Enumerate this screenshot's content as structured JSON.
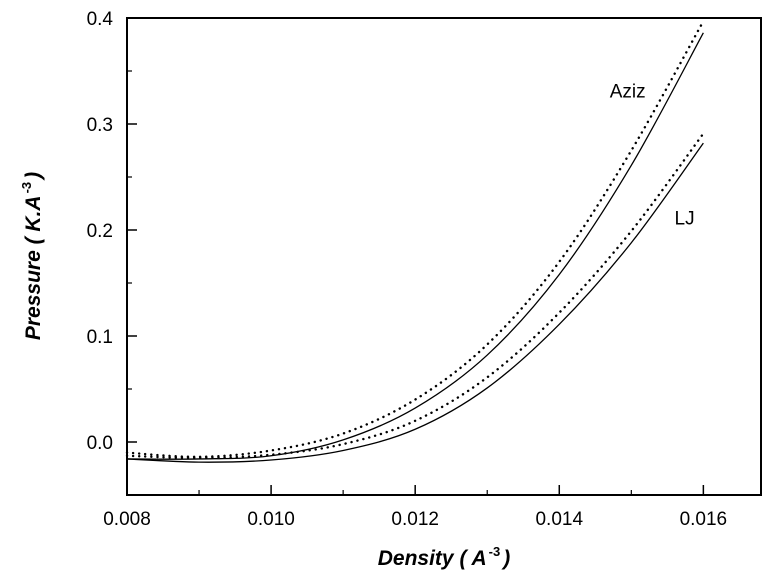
{
  "chart_data": {
    "type": "line",
    "xlabel": "Density ( A",
    "xlabel_exponent": "-3",
    "xlabel_close": ")",
    "ylabel": "Pressure ( K.A",
    "ylabel_exponent": "-3",
    "ylabel_close": ")",
    "xlim": [
      0.008,
      0.0168
    ],
    "ylim": [
      -0.05,
      0.4
    ],
    "x_ticks": [
      0.008,
      0.01,
      0.012,
      0.014,
      0.016
    ],
    "x_tick_labels": [
      "0.008",
      "0.010",
      "0.012",
      "0.014",
      "0.016"
    ],
    "y_ticks": [
      0.0,
      0.1,
      0.2,
      0.3,
      0.4
    ],
    "y_tick_labels": [
      "0.0",
      "0.1",
      "0.2",
      "0.3",
      "0.4"
    ],
    "grid": false,
    "annotations": [
      {
        "text": "Aziz",
        "x": 0.0147,
        "y": 0.325
      },
      {
        "text": "LJ",
        "x": 0.0156,
        "y": 0.205
      }
    ],
    "series": [
      {
        "style": "solid",
        "x": [
          0.008,
          0.009,
          0.01,
          0.011,
          0.012,
          0.013,
          0.014,
          0.015,
          0.016
        ],
        "y": [
          -0.016,
          -0.016,
          -0.013,
          0.002,
          0.032,
          0.082,
          0.158,
          0.261,
          0.386
        ]
      },
      {
        "style": "dotted",
        "x": [
          0.008,
          0.009,
          0.01,
          0.011,
          0.012,
          0.013,
          0.014,
          0.015,
          0.016
        ],
        "y": [
          -0.01,
          -0.014,
          -0.008,
          0.008,
          0.04,
          0.092,
          0.17,
          0.275,
          0.397
        ]
      },
      {
        "style": "solid",
        "x": [
          0.008,
          0.009,
          0.01,
          0.011,
          0.012,
          0.013,
          0.014,
          0.015,
          0.016
        ],
        "y": [
          -0.016,
          -0.019,
          -0.017,
          -0.008,
          0.012,
          0.051,
          0.111,
          0.188,
          0.282
        ]
      },
      {
        "style": "dotted",
        "x": [
          0.008,
          0.009,
          0.01,
          0.011,
          0.012,
          0.013,
          0.014,
          0.015,
          0.016
        ],
        "y": [
          -0.013,
          -0.015,
          -0.012,
          -0.002,
          0.02,
          0.061,
          0.122,
          0.199,
          0.291
        ]
      }
    ]
  }
}
